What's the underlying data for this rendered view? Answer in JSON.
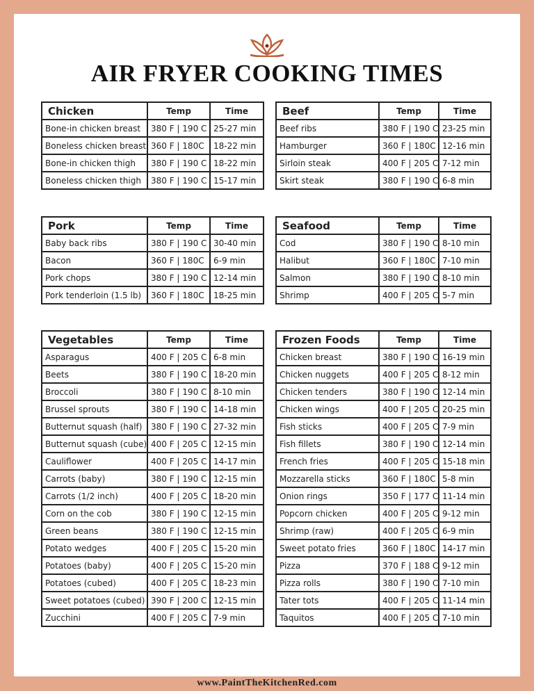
{
  "header": {
    "title": "AIR FRYER COOKING TIMES",
    "footer": "www.PaintTheKitchenRed.com"
  },
  "tables": [
    {
      "title": "Chicken",
      "columns": [
        "Temp",
        "Time"
      ],
      "rows": [
        [
          "Bone-in chicken breast",
          "380 F | 190 C",
          "25-27 min"
        ],
        [
          "Boneless chicken breast",
          "360 F | 180C",
          "18-22 min"
        ],
        [
          "Bone-in chicken thigh",
          "380 F | 190 C",
          "18-22 min"
        ],
        [
          "Boneless chicken thigh",
          "380 F | 190 C",
          "15-17 min"
        ]
      ]
    },
    {
      "title": "Beef",
      "columns": [
        "Temp",
        "Time"
      ],
      "rows": [
        [
          "Beef ribs",
          "380 F | 190 C",
          "23-25 min"
        ],
        [
          "Hamburger",
          "360 F | 180C",
          "12-16 min"
        ],
        [
          "Sirloin steak",
          "400 F | 205 C",
          "7-12 min"
        ],
        [
          "Skirt steak",
          "380 F | 190 C",
          "6-8 min"
        ]
      ]
    },
    {
      "title": "Pork",
      "columns": [
        "Temp",
        "Time"
      ],
      "rows": [
        [
          "Baby back ribs",
          "380 F | 190 C",
          "30-40 min"
        ],
        [
          "Bacon",
          "360 F | 180C",
          "6-9 min"
        ],
        [
          "Pork chops",
          "380 F | 190 C",
          "12-14 min"
        ],
        [
          "Pork tenderloin (1.5 lb)",
          "360 F | 180C",
          "18-25 min"
        ]
      ]
    },
    {
      "title": "Seafood",
      "columns": [
        "Temp",
        "Time"
      ],
      "rows": [
        [
          "Cod",
          "380 F | 190 C",
          "8-10 min"
        ],
        [
          "Halibut",
          "360 F | 180C",
          "7-10 min"
        ],
        [
          "Salmon",
          "380 F | 190 C",
          "8-10 min"
        ],
        [
          "Shrimp",
          "400 F | 205 C",
          "5-7 min"
        ]
      ]
    },
    {
      "title": "Vegetables",
      "columns": [
        "Temp",
        "Time"
      ],
      "rows": [
        [
          "Asparagus",
          "400 F | 205 C",
          "6-8 min"
        ],
        [
          "Beets",
          "380 F | 190 C",
          "18-20 min"
        ],
        [
          "Broccoli",
          "380 F | 190 C",
          "8-10 min"
        ],
        [
          "Brussel sprouts",
          "380 F | 190 C",
          "14-18 min"
        ],
        [
          "Butternut squash (half)",
          "380 F | 190 C",
          "27-32 min"
        ],
        [
          "Butternut squash (cube)",
          "400 F | 205 C",
          "12-15 min"
        ],
        [
          "Cauliflower",
          "400 F | 205 C",
          "14-17 min"
        ],
        [
          "Carrots (baby)",
          "380 F | 190 C",
          "12-15 min"
        ],
        [
          "Carrots (1/2 inch)",
          "400 F | 205 C",
          "18-20 min"
        ],
        [
          "Corn on the cob",
          "380 F | 190 C",
          "12-15 min"
        ],
        [
          "Green beans",
          "380 F | 190 C",
          "12-15 min"
        ],
        [
          "Potato wedges",
          "400 F | 205 C",
          "15-20 min"
        ],
        [
          "Potatoes (baby)",
          "400 F | 205 C",
          "15-20 min"
        ],
        [
          "Potatoes (cubed)",
          "400 F | 205 C",
          "18-23 min"
        ],
        [
          "Sweet potatoes (cubed)",
          "390 F | 200 C",
          "12-15 min"
        ],
        [
          "Zucchini",
          "400 F | 205 C",
          "7-9 min"
        ]
      ]
    },
    {
      "title": "Frozen Foods",
      "columns": [
        "Temp",
        "Time"
      ],
      "rows": [
        [
          "Chicken breast",
          "380 F | 190 C",
          "16-19 min"
        ],
        [
          "Chicken nuggets",
          "400 F | 205 C",
          "8-12 min"
        ],
        [
          "Chicken tenders",
          "380 F | 190 C",
          "12-14 min"
        ],
        [
          "Chicken wings",
          "400 F | 205 C",
          "20-25 min"
        ],
        [
          "Fish sticks",
          "400 F | 205 C",
          "7-9 min"
        ],
        [
          "Fish fillets",
          "380 F | 190 C",
          "12-14 min"
        ],
        [
          "French fries",
          "400 F | 205 C",
          "15-18 min"
        ],
        [
          "Mozzarella sticks",
          "360 F | 180C",
          "5-8 min"
        ],
        [
          "Onion rings",
          "350 F | 177 C",
          "11-14 min"
        ],
        [
          "Popcorn chicken",
          "400 F | 205 C",
          "9-12 min"
        ],
        [
          "Shrimp (raw)",
          "400 F | 205 C",
          "6-9 min"
        ],
        [
          "Sweet potato fries",
          "360 F | 180C",
          "14-17 min"
        ],
        [
          "Pizza",
          "370 F | 188 C",
          "9-12 min"
        ],
        [
          "Pizza rolls",
          "380 F | 190 C",
          "7-10 min"
        ],
        [
          "Tater tots",
          "400 F | 205 C",
          "11-14 min"
        ],
        [
          "Taquitos",
          "400 F | 205 C",
          "7-10 min"
        ]
      ]
    }
  ]
}
